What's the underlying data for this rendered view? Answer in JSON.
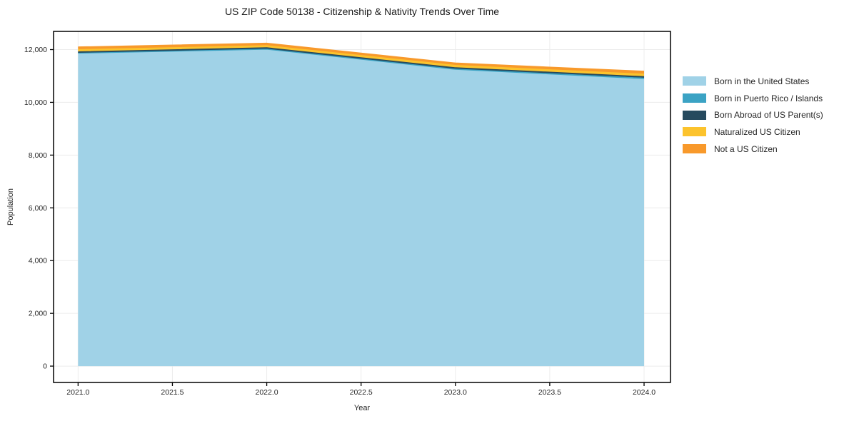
{
  "title": "US ZIP Code 50138 - Citizenship & Nativity Trends Over Time",
  "chart_data": {
    "type": "area",
    "stacked": true,
    "title": "US ZIP Code 50138 - Citizenship & Nativity Trends Over Time",
    "xlabel": "Year",
    "ylabel": "Population",
    "x": [
      2021,
      2022,
      2023,
      2024
    ],
    "series": [
      {
        "name": "Born in the United States",
        "color": "#a0d2e7",
        "values": [
          11860,
          12010,
          11250,
          10900
        ]
      },
      {
        "name": "Born in Puerto Rico / Islands",
        "color": "#3ba3c4",
        "values": [
          15,
          15,
          12,
          10
        ]
      },
      {
        "name": "Born Abroad of US Parent(s)",
        "color": "#264a5e",
        "values": [
          30,
          35,
          40,
          55
        ]
      },
      {
        "name": "Naturalized US Citizen",
        "color": "#fcc32d",
        "values": [
          85,
          80,
          90,
          95
        ]
      },
      {
        "name": "Not a US Citizen",
        "color": "#f8992b",
        "values": [
          100,
          95,
          90,
          110
        ]
      }
    ],
    "xlim": [
      2020.87,
      2024.14
    ],
    "ylim": [
      -620,
      12690
    ],
    "xticks": [
      2021.0,
      2021.5,
      2022.0,
      2022.5,
      2023.0,
      2023.5,
      2024.0
    ],
    "yticks": [
      0,
      2000,
      4000,
      6000,
      8000,
      10000,
      12000
    ],
    "grid": true,
    "legend_position": "right",
    "colors": {
      "grid": "#ececec",
      "axis_border": "#000000",
      "tick": "#000000",
      "tick_label": "#262626",
      "background": "#ffffff"
    }
  }
}
